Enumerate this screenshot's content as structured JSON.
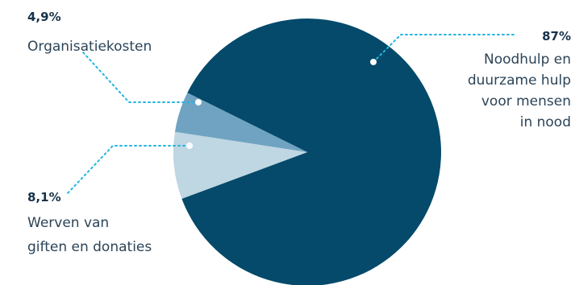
{
  "chart_data": {
    "type": "pie",
    "slices": [
      {
        "value": 87,
        "value_label": "87%",
        "label_lines": [
          "Noodhulp en",
          "duurzame hulp",
          "voor mensen",
          "in nood"
        ],
        "color": "#054a6a"
      },
      {
        "value": 8.1,
        "value_label": "8,1%",
        "label_lines": [
          "Werven van",
          "giften en donaties"
        ],
        "color": "#bfd6e3"
      },
      {
        "value": 4.9,
        "value_label": "4,9%",
        "label_lines": [
          "Organisatiekosten"
        ],
        "color": "#6fa3c1"
      }
    ],
    "leader_color": "#22b5e0"
  }
}
